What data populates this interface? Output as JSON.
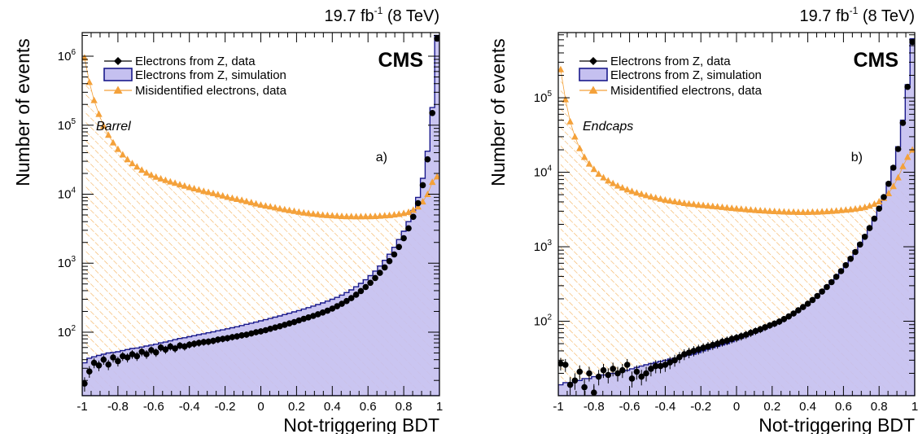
{
  "chart_data": [
    {
      "type": "histogram",
      "panel_label": "a)",
      "region_label": "Barrel",
      "experiment_label": "CMS",
      "lumi_label": "19.7 fb",
      "lumi_exponent": "-1",
      "energy_label": "(8 TeV)",
      "xlabel": "Not-triggering BDT",
      "ylabel": "Number of events",
      "xlim": [
        -1,
        1
      ],
      "ylim": [
        12,
        2200000
      ],
      "log_y": true,
      "x_ticks": [
        "-1",
        "-0.8",
        "-0.6",
        "-0.4",
        "-0.2",
        "0",
        "0.2",
        "0.4",
        "0.6",
        "0.8",
        "1"
      ],
      "y_ticks": [
        {
          "base": "10",
          "exp": "2",
          "value": 100
        },
        {
          "base": "10",
          "exp": "3",
          "value": 1000
        },
        {
          "base": "10",
          "exp": "4",
          "value": 10000
        },
        {
          "base": "10",
          "exp": "5",
          "value": 100000
        },
        {
          "base": "10",
          "exp": "6",
          "value": 1000000
        }
      ],
      "legend_position": "top-left",
      "legend": [
        {
          "key": "data_z",
          "label": "Electrons from Z, data"
        },
        {
          "key": "sim_z",
          "label": "Electrons from Z, simulation"
        },
        {
          "key": "misid",
          "label": "Misidentified electrons, data"
        }
      ],
      "series": {
        "sim_z": [
          36,
          42,
          44,
          46,
          48,
          50,
          51,
          52,
          54,
          56,
          58,
          59,
          61,
          63,
          65,
          67,
          70,
          72,
          75,
          78,
          81,
          83,
          86,
          89,
          92,
          95,
          98,
          101,
          105,
          108,
          112,
          116,
          120,
          125,
          130,
          135,
          140,
          146,
          152,
          158,
          165,
          172,
          180,
          188,
          197,
          206,
          216,
          227,
          239,
          252,
          266,
          282,
          300,
          320,
          345,
          375,
          410,
          455,
          510,
          575,
          660,
          770,
          910,
          1100,
          1350,
          1700,
          2200,
          2900,
          4000,
          5800,
          9000,
          17000,
          42000,
          180000,
          2000000
        ],
        "data_z": [
          18,
          27,
          36,
          33,
          40,
          34,
          43,
          38,
          45,
          43,
          48,
          45,
          52,
          48,
          55,
          51,
          60,
          56,
          62,
          58,
          64,
          62,
          66,
          68,
          70,
          72,
          73,
          75,
          78,
          80,
          82,
          85,
          87,
          90,
          92,
          96,
          100,
          103,
          107,
          112,
          117,
          122,
          128,
          134,
          140,
          148,
          156,
          164,
          172,
          182,
          193,
          205,
          220,
          238,
          258,
          283,
          312,
          350,
          395,
          452,
          520,
          610,
          725,
          870,
          1070,
          1340,
          1720,
          2300,
          3200,
          4700,
          7400,
          13500,
          32000,
          150000,
          1800000
        ],
        "misid": [
          950000,
          420000,
          230000,
          145000,
          98000,
          72000,
          56000,
          45000,
          37500,
          32000,
          28000,
          25000,
          22500,
          20500,
          19000,
          17800,
          16800,
          16000,
          15200,
          14500,
          13800,
          13200,
          12600,
          12100,
          11600,
          11100,
          10700,
          10300,
          9900,
          9500,
          9100,
          8800,
          8500,
          8200,
          7900,
          7600,
          7300,
          7000,
          6800,
          6600,
          6400,
          6200,
          6000,
          5850,
          5700,
          5550,
          5400,
          5300,
          5200,
          5100,
          5000,
          4950,
          4900,
          4850,
          4800,
          4780,
          4760,
          4750,
          4750,
          4760,
          4780,
          4800,
          4850,
          4900,
          4950,
          5050,
          5150,
          5300,
          5500,
          5900,
          6600,
          7800,
          10000,
          15000,
          18000
        ]
      }
    },
    {
      "type": "histogram",
      "panel_label": "b)",
      "region_label": "Endcaps",
      "experiment_label": "CMS",
      "lumi_label": "19.7 fb",
      "lumi_exponent": "-1",
      "energy_label": "(8 TeV)",
      "xlabel": "Not-triggering BDT",
      "ylabel": "Number of events",
      "xlim": [
        -1,
        1
      ],
      "ylim": [
        10,
        750000
      ],
      "log_y": true,
      "x_ticks": [
        "-1",
        "-0.8",
        "-0.6",
        "-0.4",
        "-0.2",
        "0",
        "0.2",
        "0.4",
        "0.6",
        "0.8",
        "1"
      ],
      "y_ticks": [
        {
          "base": "10",
          "exp": "2",
          "value": 100
        },
        {
          "base": "10",
          "exp": "3",
          "value": 1000
        },
        {
          "base": "10",
          "exp": "4",
          "value": 10000
        },
        {
          "base": "10",
          "exp": "5",
          "value": 100000
        }
      ],
      "legend_position": "top-left",
      "legend": [
        {
          "key": "data_z",
          "label": "Electrons from Z, data"
        },
        {
          "key": "sim_z",
          "label": "Electrons from Z, simulation"
        },
        {
          "key": "misid",
          "label": "Misidentified electrons, data"
        }
      ],
      "series": {
        "sim_z": [
          14,
          15,
          15,
          16,
          16,
          17,
          17,
          18,
          18,
          19,
          19,
          20,
          20,
          21,
          22,
          23,
          24,
          25,
          26,
          27,
          28,
          29,
          30,
          31,
          32,
          33,
          34,
          35,
          36,
          38,
          40,
          42,
          44,
          46,
          48,
          50,
          53,
          56,
          59,
          62,
          66,
          70,
          74,
          79,
          84,
          90,
          97,
          105,
          115,
          126,
          140,
          156,
          175,
          198,
          226,
          260,
          300,
          350,
          410,
          490,
          590,
          720,
          890,
          1120,
          1420,
          1850,
          2450,
          3350,
          4800,
          7300,
          12000,
          22000,
          50000,
          150000,
          620000
        ],
        "data_z": [
          27,
          26,
          14,
          16,
          21,
          13,
          20,
          11,
          18,
          22,
          19,
          23,
          20,
          22,
          26,
          17,
          21,
          18,
          20,
          23,
          25,
          25,
          26,
          28,
          30,
          33,
          36,
          38,
          40,
          42,
          44,
          46,
          48,
          50,
          53,
          55,
          58,
          60,
          63,
          66,
          70,
          74,
          78,
          83,
          88,
          93,
          99,
          107,
          116,
          127,
          140,
          155,
          172,
          193,
          218,
          250,
          288,
          335,
          395,
          470,
          565,
          690,
          850,
          1070,
          1360,
          1780,
          2380,
          3250,
          4650,
          7000,
          11500,
          20500,
          46000,
          140000,
          560000
        ],
        "misid": [
          240000,
          95000,
          48000,
          30000,
          21000,
          16000,
          13000,
          11000,
          9500,
          8500,
          7700,
          7100,
          6600,
          6200,
          5850,
          5550,
          5300,
          5100,
          4900,
          4700,
          4550,
          4400,
          4250,
          4150,
          4050,
          3950,
          3850,
          3780,
          3720,
          3650,
          3600,
          3550,
          3500,
          3450,
          3400,
          3350,
          3300,
          3260,
          3220,
          3180,
          3140,
          3100,
          3070,
          3040,
          3010,
          2990,
          2970,
          2950,
          2940,
          2930,
          2920,
          2920,
          2920,
          2930,
          2940,
          2960,
          2980,
          3010,
          3040,
          3080,
          3120,
          3170,
          3230,
          3300,
          3400,
          3550,
          3750,
          4050,
          4500,
          5200,
          6500,
          8500,
          12000,
          16000,
          20000
        ]
      }
    }
  ]
}
